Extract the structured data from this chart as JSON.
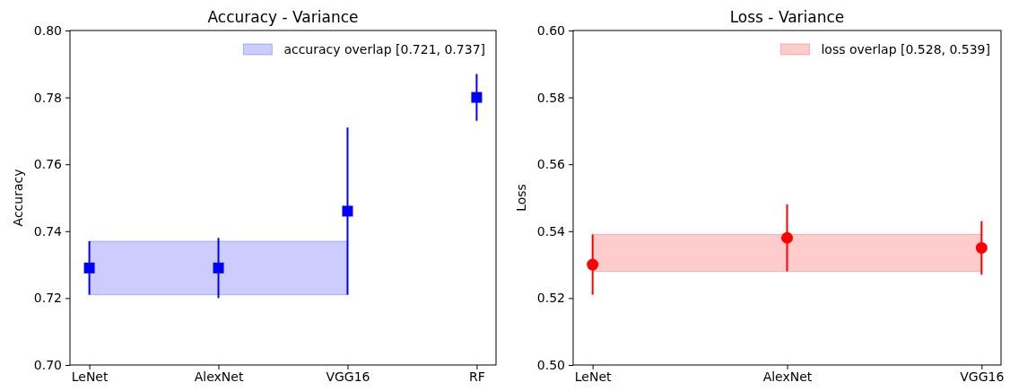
{
  "chart_data": [
    {
      "type": "scatter",
      "title": "Accuracy - Variance",
      "ylabel": "Accuracy",
      "categories": [
        "LeNet",
        "AlexNet",
        "VGG16",
        "RF"
      ],
      "series": [
        {
          "color": "#0000ff",
          "values": [
            0.729,
            0.729,
            0.746,
            0.78
          ],
          "errors": [
            [
              0.721,
              0.737
            ],
            [
              0.72,
              0.738
            ],
            [
              0.721,
              0.771
            ],
            [
              0.773,
              0.787
            ]
          ]
        }
      ],
      "marker": "square",
      "ylim": [
        0.7,
        0.8
      ],
      "yticks": [
        {
          "value": 0.7,
          "label": "0.70"
        },
        {
          "value": 0.72,
          "label": "0.72"
        },
        {
          "value": 0.74,
          "label": "0.74"
        },
        {
          "value": 0.76,
          "label": "0.76"
        },
        {
          "value": 0.78,
          "label": "0.78"
        },
        {
          "value": 0.8,
          "label": "0.80"
        }
      ],
      "bands": [
        {
          "axis": "y",
          "from": 0.721,
          "to": 0.737,
          "label": "accuracy overlap [0.721, 0.737]",
          "color": "#0000ff"
        }
      ],
      "legend": "top right"
    },
    {
      "type": "scatter",
      "title": "Loss - Variance",
      "ylabel": "Loss",
      "categories": [
        "LeNet",
        "AlexNet",
        "VGG16"
      ],
      "series": [
        {
          "color": "#ff0000",
          "values": [
            0.53,
            0.538,
            0.535
          ],
          "errors": [
            [
              0.521,
              0.539
            ],
            [
              0.528,
              0.548
            ],
            [
              0.527,
              0.543
            ]
          ]
        }
      ],
      "marker": "circle",
      "ylim": [
        0.5,
        0.6
      ],
      "yticks": [
        {
          "value": 0.5,
          "label": "0.50"
        },
        {
          "value": 0.52,
          "label": "0.52"
        },
        {
          "value": 0.54,
          "label": "0.54"
        },
        {
          "value": 0.56,
          "label": "0.56"
        },
        {
          "value": 0.58,
          "label": "0.58"
        },
        {
          "value": 0.6,
          "label": "0.60"
        }
      ],
      "bands": [
        {
          "axis": "y",
          "from": 0.528,
          "to": 0.539,
          "label": "loss overlap [0.528, 0.539]",
          "color": "#ff0000"
        }
      ],
      "legend": "top right"
    }
  ]
}
